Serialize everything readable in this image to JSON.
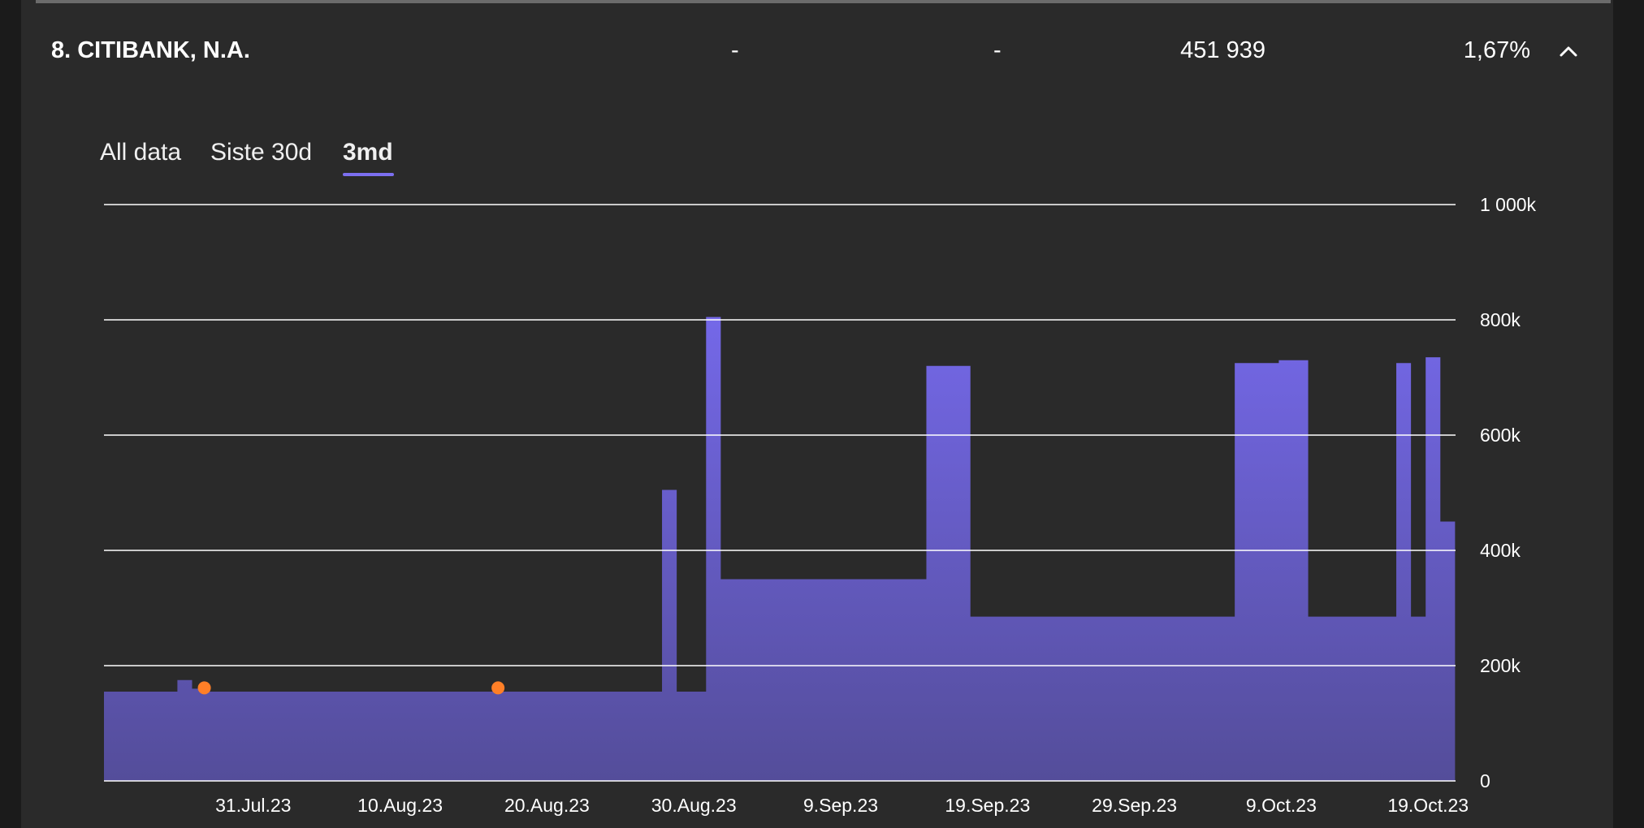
{
  "row": {
    "title": "8. CITIBANK, N.A.",
    "col1": "-",
    "col2": "-",
    "col3": "451 939",
    "col4": "1,67%",
    "collapse_icon": "chevron-up-icon"
  },
  "tabs": [
    {
      "label": "All data",
      "active": false
    },
    {
      "label": "Siste 30d",
      "active": false
    },
    {
      "label": "3md",
      "active": true
    }
  ],
  "colors": {
    "accent": "#7c6ff0",
    "area_top": "#7468e8",
    "area_bottom": "#544d9a",
    "marker": "#ff7f27",
    "background": "#2a2a2a"
  },
  "chart_data": {
    "type": "area",
    "step": true,
    "x_range": [
      "2023-07-21",
      "2023-10-20"
    ],
    "ylim": [
      0,
      1000000
    ],
    "y_ticks": [
      {
        "value": 0,
        "label": "0"
      },
      {
        "value": 200000,
        "label": "200k"
      },
      {
        "value": 400000,
        "label": "400k"
      },
      {
        "value": 600000,
        "label": "600k"
      },
      {
        "value": 800000,
        "label": "800k"
      },
      {
        "value": 1000000,
        "label": "1 000k"
      }
    ],
    "x_ticks": [
      {
        "date": "2023-07-31",
        "label": "31.Jul.23"
      },
      {
        "date": "2023-08-10",
        "label": "10.Aug.23"
      },
      {
        "date": "2023-08-20",
        "label": "20.Aug.23"
      },
      {
        "date": "2023-08-30",
        "label": "30.Aug.23"
      },
      {
        "date": "2023-09-09",
        "label": "9.Sep.23"
      },
      {
        "date": "2023-09-19",
        "label": "19.Sep.23"
      },
      {
        "date": "2023-09-29",
        "label": "29.Sep.23"
      },
      {
        "date": "2023-10-09",
        "label": "9.Oct.23"
      },
      {
        "date": "2023-10-19",
        "label": "19.Oct.23"
      }
    ],
    "grid": true,
    "y_axis_position": "right",
    "series": [
      {
        "points": [
          {
            "date": "2023-07-21",
            "value": 155000
          },
          {
            "date": "2023-07-26",
            "value": 175000
          },
          {
            "date": "2023-07-27",
            "value": 160000
          },
          {
            "date": "2023-07-28",
            "value": 155000
          },
          {
            "date": "2023-08-28",
            "value": 505000
          },
          {
            "date": "2023-08-29",
            "value": 155000
          },
          {
            "date": "2023-08-31",
            "value": 805000
          },
          {
            "date": "2023-09-01",
            "value": 350000
          },
          {
            "date": "2023-09-15",
            "value": 720000
          },
          {
            "date": "2023-09-18",
            "value": 285000
          },
          {
            "date": "2023-10-06",
            "value": 725000
          },
          {
            "date": "2023-10-09",
            "value": 730000
          },
          {
            "date": "2023-10-11",
            "value": 285000
          },
          {
            "date": "2023-10-17",
            "value": 725000
          },
          {
            "date": "2023-10-18",
            "value": 285000
          },
          {
            "date": "2023-10-19",
            "value": 735000
          },
          {
            "date": "2023-10-20",
            "value": 450000
          }
        ],
        "end_date": "2023-10-21"
      }
    ],
    "markers": [
      {
        "date": "2023-07-28",
        "value": 160000
      },
      {
        "date": "2023-08-17",
        "value": 160000
      }
    ]
  }
}
